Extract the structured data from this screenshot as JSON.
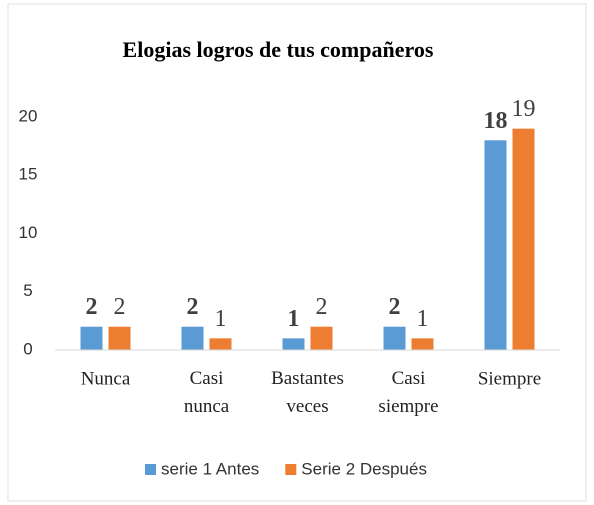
{
  "chart_data": {
    "type": "bar",
    "title": "Elogias logros de tus compañeros",
    "categories": [
      "Nunca",
      "Casi nunca",
      "Bastantes veces",
      "Casi siempre",
      "Siempre"
    ],
    "series": [
      {
        "name": "serie 1 Antes",
        "color": "#5b9bd5",
        "values": [
          2,
          2,
          1,
          2,
          18
        ]
      },
      {
        "name": "Serie 2 Después",
        "color": "#ed7d31",
        "values": [
          2,
          1,
          2,
          1,
          19
        ]
      }
    ],
    "ylim": [
      0,
      20
    ],
    "yticks": [
      0,
      5,
      10,
      15,
      20
    ],
    "grid": false,
    "legend": "bottom"
  }
}
